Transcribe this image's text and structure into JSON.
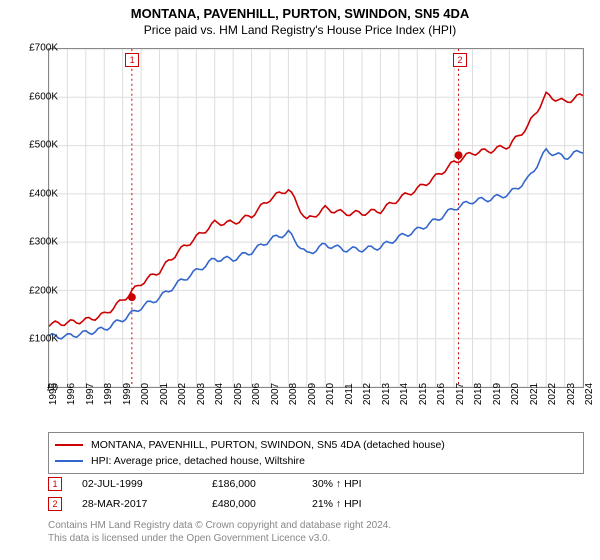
{
  "title": "MONTANA, PAVENHILL, PURTON, SWINDON, SN5 4DA",
  "subtitle": "Price paid vs. HM Land Registry's House Price Index (HPI)",
  "chart": {
    "type": "line",
    "background_color": "#ffffff",
    "border_color": "#888888",
    "grid_color": "#dddddd",
    "ylim": [
      0,
      700000
    ],
    "ytick_step": 100000,
    "ytick_labels": [
      "£0",
      "£100K",
      "£200K",
      "£300K",
      "£400K",
      "£500K",
      "£600K",
      "£700K"
    ],
    "x_years": [
      1995,
      1996,
      1997,
      1998,
      1999,
      2000,
      2001,
      2002,
      2003,
      2004,
      2005,
      2006,
      2007,
      2008,
      2009,
      2010,
      2011,
      2012,
      2013,
      2014,
      2015,
      2016,
      2017,
      2018,
      2019,
      2020,
      2021,
      2022,
      2023,
      2024
    ],
    "title_fontsize": 13,
    "label_fontsize": 10,
    "line_width": 1.6,
    "series": [
      {
        "name": "property",
        "color": "#cc0000",
        "label": "MONTANA, PAVENHILL, PURTON, SWINDON, SN5 4DA (detached house)",
        "values": [
          130000,
          133000,
          138000,
          150000,
          180000,
          215000,
          240000,
          280000,
          310000,
          340000,
          340000,
          355000,
          390000,
          410000,
          345000,
          370000,
          360000,
          360000,
          365000,
          390000,
          410000,
          435000,
          465000,
          485000,
          490000,
          500000,
          540000,
          605000,
          590000,
          605000
        ]
      },
      {
        "name": "hpi",
        "color": "#3366cc",
        "label": "HPI: Average price, detached house, Wiltshire",
        "values": [
          105000,
          105000,
          112000,
          120000,
          140000,
          165000,
          185000,
          215000,
          240000,
          265000,
          265000,
          280000,
          305000,
          320000,
          275000,
          295000,
          285000,
          285000,
          290000,
          310000,
          325000,
          345000,
          370000,
          385000,
          390000,
          400000,
          430000,
          490000,
          475000,
          490000
        ]
      }
    ],
    "markers": [
      {
        "n": "1",
        "year_frac": 1999.5,
        "value": 186000
      },
      {
        "n": "2",
        "year_frac": 2017.24,
        "value": 480000
      }
    ],
    "marker_line_color": "#cc0000",
    "marker_dot_color": "#cc0000"
  },
  "legend": {
    "rows": [
      {
        "color": "#cc0000",
        "label": "MONTANA, PAVENHILL, PURTON, SWINDON, SN5 4DA (detached house)"
      },
      {
        "color": "#3366cc",
        "label": "HPI: Average price, detached house, Wiltshire"
      }
    ]
  },
  "marker_table": [
    {
      "n": "1",
      "date": "02-JUL-1999",
      "price": "£186,000",
      "diff": "30% ↑ HPI"
    },
    {
      "n": "2",
      "date": "28-MAR-2017",
      "price": "£480,000",
      "diff": "21% ↑ HPI"
    }
  ],
  "footer_line1": "Contains HM Land Registry data © Crown copyright and database right 2024.",
  "footer_line2": "This data is licensed under the Open Government Licence v3.0."
}
